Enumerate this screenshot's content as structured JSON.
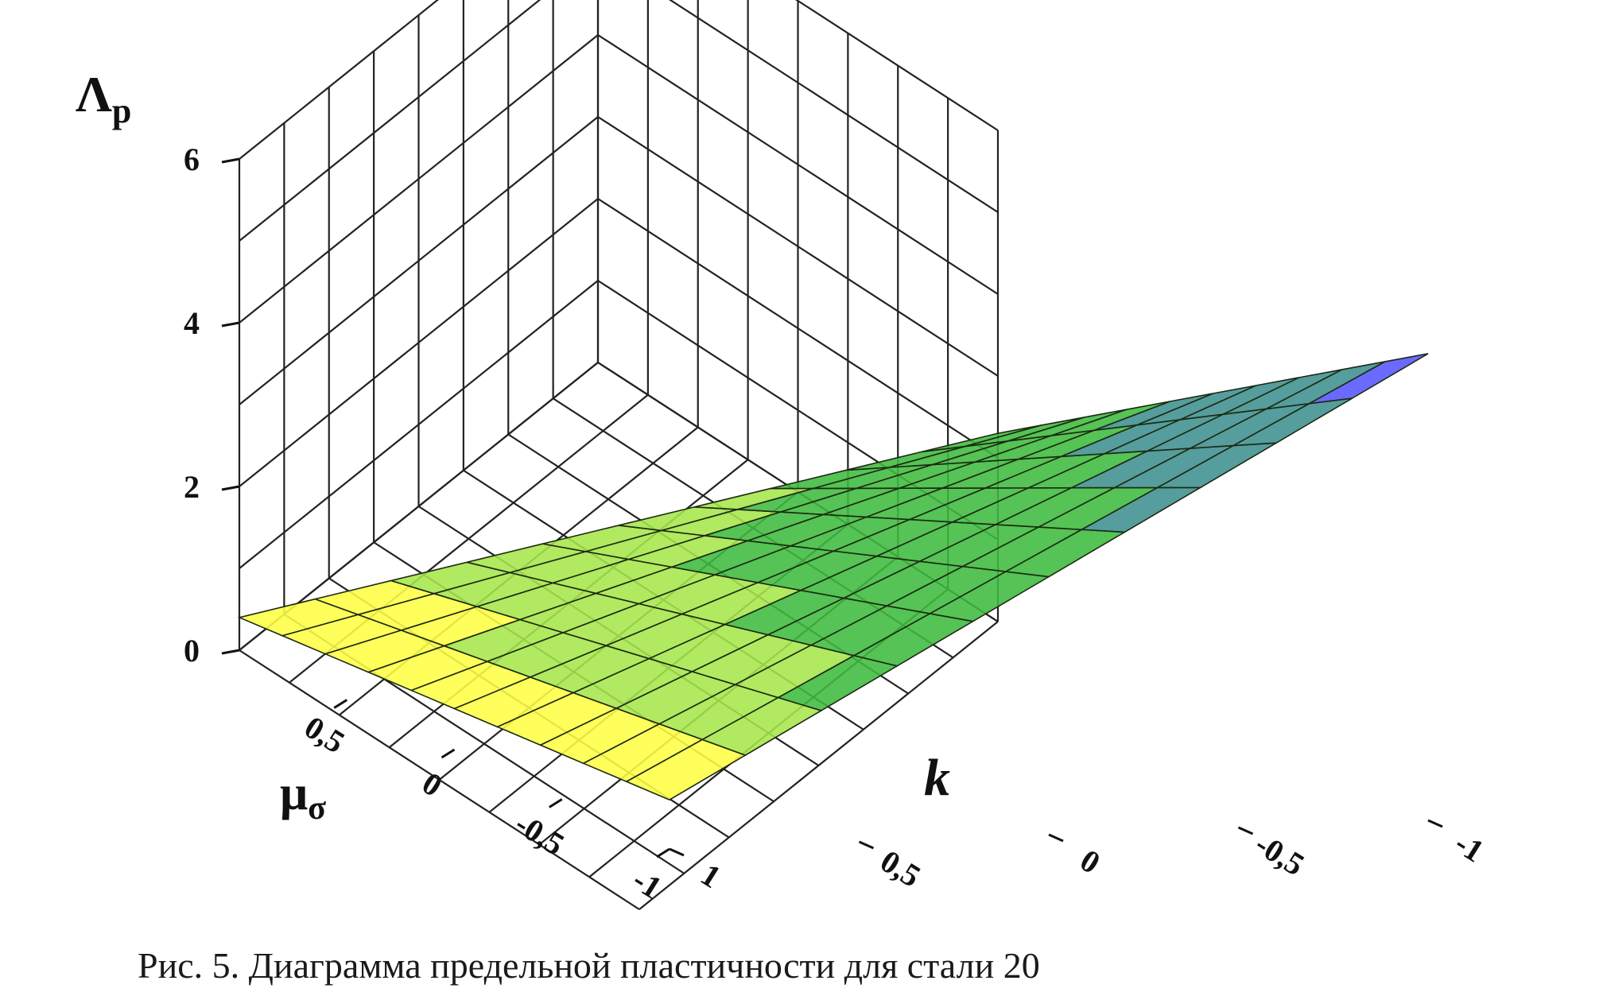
{
  "caption": "Рис. 5. Диаграмма предельной пластичности для стали 20",
  "chart_data": {
    "type": "surface3d",
    "title": "",
    "axis_labels": {
      "z": {
        "main": "Λ",
        "sub": "p"
      },
      "x": {
        "main": "μ",
        "sub": "σ"
      },
      "y": {
        "main": "k"
      }
    },
    "x_ticks": [
      "0,5",
      "0",
      "-0,5",
      "-1"
    ],
    "x_tick_values": [
      0.5,
      0,
      -0.5,
      -1
    ],
    "y_ticks": [
      "-1",
      "-0,5",
      "0",
      "0,5",
      "1"
    ],
    "y_tick_values": [
      -1,
      -0.5,
      0,
      0.5,
      1
    ],
    "z_ticks": [
      "0",
      "2",
      "4",
      "6"
    ],
    "z_tick_values": [
      0,
      2,
      4,
      6
    ],
    "x_range": [
      1,
      -1
    ],
    "y_range": [
      1,
      -1
    ],
    "z_range": [
      0,
      6
    ],
    "color_levels": [
      0.9,
      1.8,
      3.6,
      5.0
    ],
    "colors": {
      "yellow": "#ffff44",
      "yellowgreen": "#a6e64a",
      "green": "#3dbb3d",
      "teal": "#3f8f8f",
      "blue": "#5555ff"
    },
    "surface_corners": [
      {
        "mu": 1,
        "k": 1,
        "lambda": 0.4
      },
      {
        "mu": -1,
        "k": 1,
        "lambda": 0.6
      },
      {
        "mu": 1,
        "k": -1,
        "lambda": 2.3
      },
      {
        "mu": -1,
        "k": -1,
        "lambda": 5.7
      }
    ],
    "grid": true
  }
}
